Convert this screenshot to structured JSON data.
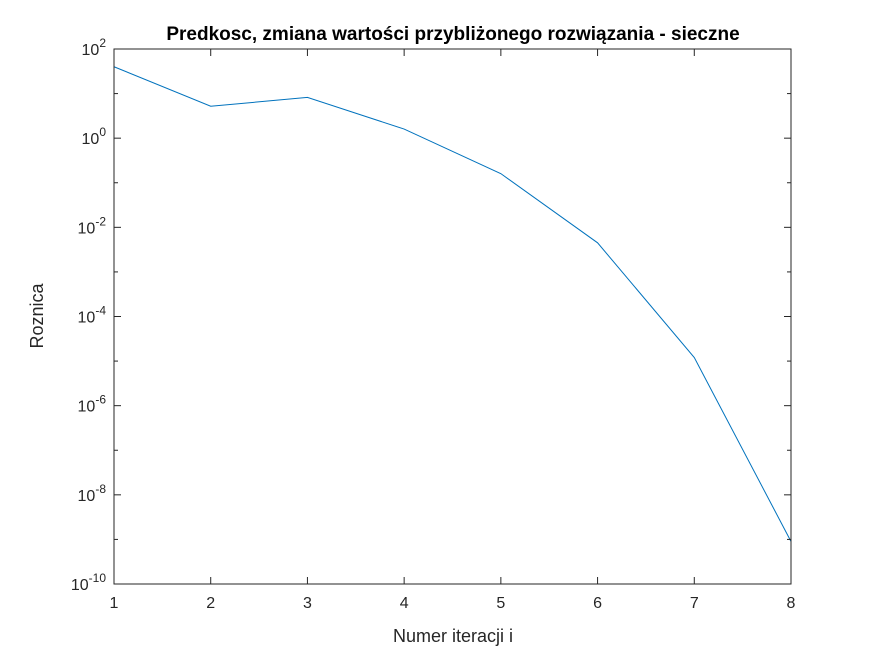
{
  "chart_data": {
    "type": "line",
    "title": "Predkosc, zmiana wartości przybliżonego rozwiązania - sieczne",
    "xlabel": "Numer iteracji i",
    "ylabel": "Roznica",
    "x": [
      1,
      2,
      3,
      4,
      5,
      6,
      7,
      8
    ],
    "series": [
      {
        "values": [
          40,
          5.2,
          8.2,
          1.6,
          0.16,
          0.0045,
          1.2e-05,
          9e-10
        ]
      }
    ],
    "xlim": [
      1,
      8
    ],
    "ylim": [
      1e-10,
      100
    ],
    "yscale": "log",
    "xticks": [
      "1",
      "2",
      "3",
      "4",
      "5",
      "6",
      "7",
      "8"
    ],
    "yticks": [
      {
        "base": "10",
        "exp": "-10"
      },
      {
        "base": "10",
        "exp": "-8"
      },
      {
        "base": "10",
        "exp": "-6"
      },
      {
        "base": "10",
        "exp": "-4"
      },
      {
        "base": "10",
        "exp": "-2"
      },
      {
        "base": "10",
        "exp": "0"
      },
      {
        "base": "10",
        "exp": "2"
      }
    ],
    "grid": false,
    "line_color": "#0072bd",
    "axis_color": "#262626"
  }
}
